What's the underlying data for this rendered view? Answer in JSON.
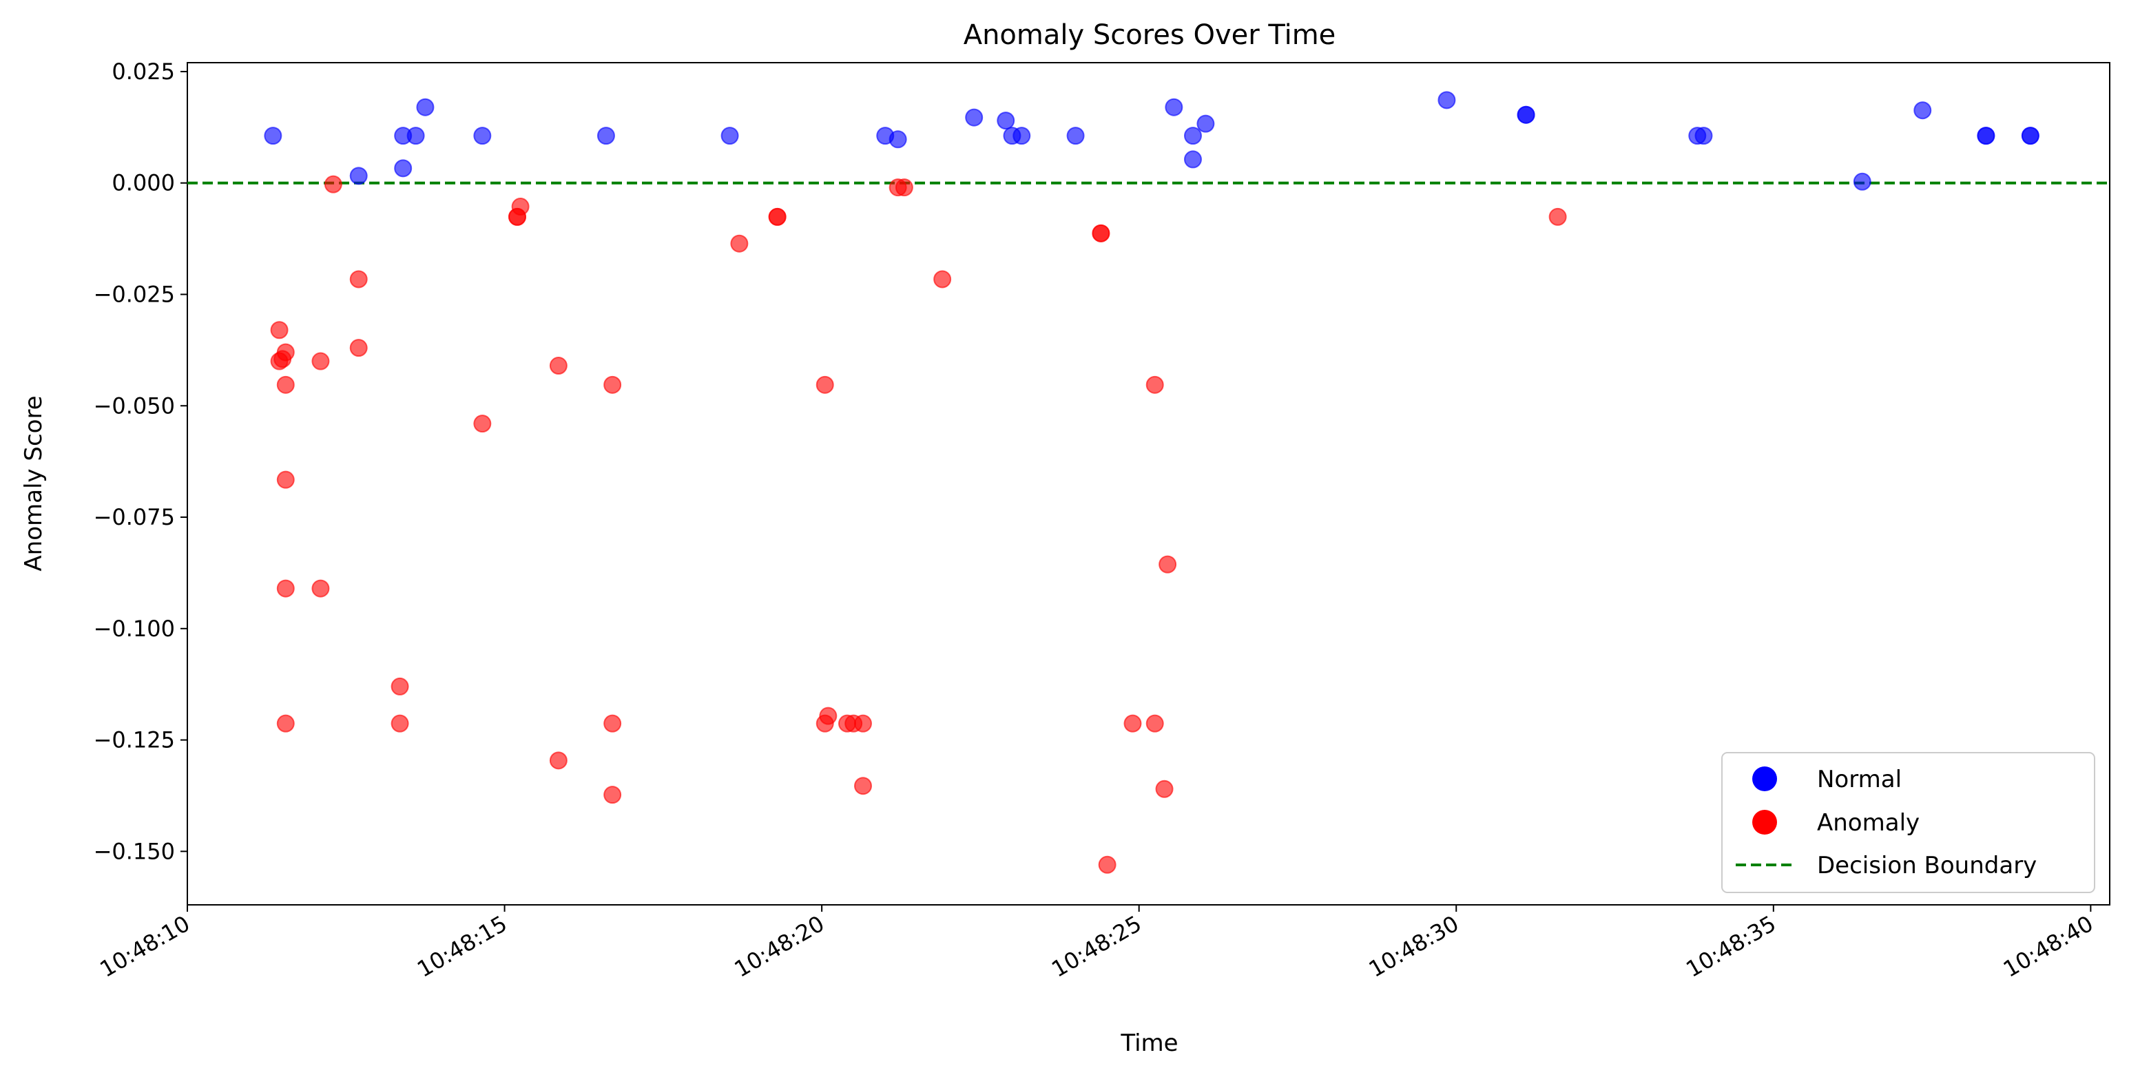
{
  "chart_data": {
    "type": "scatter",
    "title": "Anomaly Scores Over Time",
    "xlabel": "Time",
    "ylabel": "Anomaly Score",
    "xlim": [
      "10:48:10",
      "10:48:40.3"
    ],
    "ylim": [
      -0.162,
      0.027
    ],
    "x_ticks": [
      "10:48:10",
      "10:48:15",
      "10:48:20",
      "10:48:25",
      "10:48:30",
      "10:48:35",
      "10:48:40"
    ],
    "y_ticks": [
      0.025,
      0.0,
      -0.025,
      -0.05,
      -0.075,
      -0.1,
      -0.125,
      -0.15
    ],
    "y_tick_labels": [
      "0.025",
      "0.000",
      "−0.025",
      "−0.050",
      "−0.075",
      "−0.100",
      "−0.125",
      "−0.150"
    ],
    "decision_boundary": 0.0,
    "legend_position": "lower-right",
    "colors": {
      "normal": "#0000ff",
      "anomaly": "#ff0000",
      "boundary": "#008000"
    },
    "series": [
      {
        "name": "Normal",
        "color": "#0000ff",
        "points": [
          [
            "10:48:11.35",
            0.0106
          ],
          [
            "10:48:12.70",
            0.0016
          ],
          [
            "10:48:13.40",
            0.0106
          ],
          [
            "10:48:13.40",
            0.0033
          ],
          [
            "10:48:13.60",
            0.0106
          ],
          [
            "10:48:13.75",
            0.017
          ],
          [
            "10:48:14.65",
            0.0106
          ],
          [
            "10:48:16.60",
            0.0106
          ],
          [
            "10:48:18.55",
            0.0106
          ],
          [
            "10:48:21.00",
            0.0106
          ],
          [
            "10:48:21.20",
            0.0098
          ],
          [
            "10:48:22.40",
            0.0147
          ],
          [
            "10:48:22.90",
            0.014
          ],
          [
            "10:48:23.00",
            0.0106
          ],
          [
            "10:48:23.15",
            0.0106
          ],
          [
            "10:48:24.00",
            0.0106
          ],
          [
            "10:48:25.55",
            0.017
          ],
          [
            "10:48:25.85",
            0.0106
          ],
          [
            "10:48:25.85",
            0.0053
          ],
          [
            "10:48:26.05",
            0.0133
          ],
          [
            "10:48:29.85",
            0.0186
          ],
          [
            "10:48:31.10",
            0.0153
          ],
          [
            "10:48:31.10",
            0.0153
          ],
          [
            "10:48:33.80",
            0.0106
          ],
          [
            "10:48:33.90",
            0.0106
          ],
          [
            "10:48:36.40",
            0.0003
          ],
          [
            "10:48:37.35",
            0.0163
          ],
          [
            "10:48:38.35",
            0.0106
          ],
          [
            "10:48:38.35",
            0.0106
          ],
          [
            "10:48:39.05",
            0.0106
          ],
          [
            "10:48:39.05",
            0.0106
          ]
        ]
      },
      {
        "name": "Anomaly",
        "color": "#ff0000",
        "points": [
          [
            "10:48:11.45",
            -0.033
          ],
          [
            "10:48:11.45",
            -0.04
          ],
          [
            "10:48:11.50",
            -0.0395
          ],
          [
            "10:48:11.55",
            -0.038
          ],
          [
            "10:48:11.55",
            -0.0453
          ],
          [
            "10:48:11.55",
            -0.0666
          ],
          [
            "10:48:11.55",
            -0.091
          ],
          [
            "10:48:11.55",
            -0.1213
          ],
          [
            "10:48:12.10",
            -0.04
          ],
          [
            "10:48:12.10",
            -0.091
          ],
          [
            "10:48:12.30",
            -0.0003
          ],
          [
            "10:48:12.70",
            -0.0216
          ],
          [
            "10:48:12.70",
            -0.037
          ],
          [
            "10:48:13.35",
            -0.113
          ],
          [
            "10:48:13.35",
            -0.1213
          ],
          [
            "10:48:14.65",
            -0.054
          ],
          [
            "10:48:15.20",
            -0.0076
          ],
          [
            "10:48:15.20",
            -0.0076
          ],
          [
            "10:48:15.25",
            -0.0053
          ],
          [
            "10:48:15.85",
            -0.041
          ],
          [
            "10:48:15.85",
            -0.1296
          ],
          [
            "10:48:16.70",
            -0.0453
          ],
          [
            "10:48:16.70",
            -0.1213
          ],
          [
            "10:48:16.70",
            -0.1373
          ],
          [
            "10:48:18.70",
            -0.0136
          ],
          [
            "10:48:19.30",
            -0.0076
          ],
          [
            "10:48:19.30",
            -0.0076
          ],
          [
            "10:48:20.05",
            -0.0453
          ],
          [
            "10:48:20.05",
            -0.1213
          ],
          [
            "10:48:20.10",
            -0.1196
          ],
          [
            "10:48:20.40",
            -0.1213
          ],
          [
            "10:48:20.50",
            -0.1213
          ],
          [
            "10:48:20.65",
            -0.1213
          ],
          [
            "10:48:20.65",
            -0.1353
          ],
          [
            "10:48:21.20",
            -0.001
          ],
          [
            "10:48:21.30",
            -0.001
          ],
          [
            "10:48:21.90",
            -0.0216
          ],
          [
            "10:48:24.40",
            -0.0113
          ],
          [
            "10:48:24.40",
            -0.0113
          ],
          [
            "10:48:24.50",
            -0.153
          ],
          [
            "10:48:24.90",
            -0.1213
          ],
          [
            "10:48:25.25",
            -0.1213
          ],
          [
            "10:48:25.25",
            -0.0453
          ],
          [
            "10:48:25.40",
            -0.136
          ],
          [
            "10:48:25.45",
            -0.0856
          ],
          [
            "10:48:31.60",
            -0.0076
          ]
        ]
      }
    ]
  },
  "legend": {
    "normal_label": "Normal",
    "anomaly_label": "Anomaly",
    "boundary_label": "Decision Boundary"
  }
}
